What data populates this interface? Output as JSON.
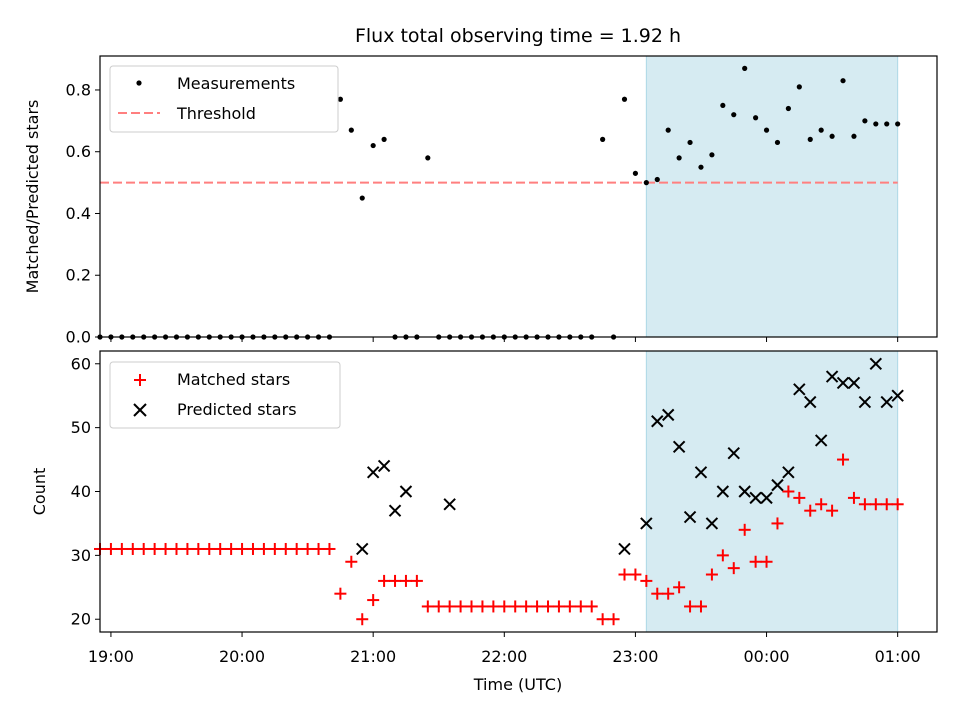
{
  "chart_data": {
    "type": "scatter",
    "title": "Flux total observing time = 1.92 h",
    "xlabel": "Time (UTC)",
    "x_ticks": [
      "19:00",
      "20:00",
      "21:00",
      "22:00",
      "23:00",
      "00:00",
      "01:00"
    ],
    "xlim": [
      "18:55",
      "01:18"
    ],
    "shaded_span": {
      "from": "23:05",
      "to": "01:00",
      "color": "#add8e6"
    },
    "panels": [
      {
        "ylabel": "Matched/Predicted stars",
        "ylim": [
          0,
          0.91
        ],
        "y_ticks": [
          "0.0",
          "0.2",
          "0.4",
          "0.6",
          "0.8"
        ],
        "legend": {
          "position": "top-left",
          "entries": [
            "Measurements",
            "Threshold"
          ]
        },
        "threshold": {
          "name": "Threshold",
          "value": 0.5,
          "from": "18:55",
          "to": "01:00",
          "color": "#ff7f7f"
        },
        "series": [
          {
            "name": "Measurements",
            "marker": "dot",
            "color": "#000000",
            "x": [
              "18:55",
              "19:00",
              "19:05",
              "19:10",
              "19:15",
              "19:20",
              "19:25",
              "19:30",
              "19:35",
              "19:40",
              "19:45",
              "19:50",
              "19:55",
              "20:00",
              "20:05",
              "20:10",
              "20:15",
              "20:20",
              "20:25",
              "20:30",
              "20:35",
              "20:40",
              "20:45",
              "20:50",
              "20:55",
              "21:00",
              "21:05",
              "21:10",
              "21:15",
              "21:20",
              "21:25",
              "21:30",
              "21:35",
              "21:40",
              "21:45",
              "21:50",
              "21:55",
              "22:00",
              "22:05",
              "22:10",
              "22:15",
              "22:20",
              "22:25",
              "22:30",
              "22:35",
              "22:40",
              "22:45",
              "22:50",
              "22:55",
              "23:00",
              "23:05",
              "23:10",
              "23:15",
              "23:20",
              "23:25",
              "23:30",
              "23:35",
              "23:40",
              "23:45",
              "23:50",
              "23:55",
              "00:00",
              "00:05",
              "00:10",
              "00:15",
              "00:20",
              "00:25",
              "00:30",
              "00:35",
              "00:40",
              "00:45",
              "00:50",
              "00:55",
              "01:00"
            ],
            "y": [
              0,
              0,
              0,
              0,
              0,
              0,
              0,
              0,
              0,
              0,
              0,
              0,
              0,
              0,
              0,
              0,
              0,
              0,
              0,
              0,
              0,
              0,
              0.77,
              0.67,
              0.45,
              0.62,
              0.64,
              0,
              0,
              0,
              0.58,
              0,
              0,
              0,
              0,
              0,
              0,
              0,
              0,
              0,
              0,
              0,
              0,
              0,
              0,
              0,
              0.64,
              0,
              0.77,
              0.53,
              0.5,
              0.51,
              0.67,
              0.58,
              0.63,
              0.55,
              0.59,
              0.75,
              0.72,
              0.87,
              0.71,
              0.67,
              0.63,
              0.74,
              0.81,
              0.64,
              0.67,
              0.65,
              0.83,
              0.65,
              0.7,
              0.69,
              0.69,
              0.69
            ]
          }
        ]
      },
      {
        "ylabel": "Count",
        "ylim": [
          18,
          62
        ],
        "y_ticks": [
          "20",
          "30",
          "40",
          "50",
          "60"
        ],
        "legend": {
          "position": "top-left",
          "entries": [
            "Matched stars",
            "Predicted stars"
          ]
        },
        "series": [
          {
            "name": "Matched stars",
            "marker": "plus",
            "color": "#ff0000",
            "x": [
              "18:55",
              "19:00",
              "19:05",
              "19:10",
              "19:15",
              "19:20",
              "19:25",
              "19:30",
              "19:35",
              "19:40",
              "19:45",
              "19:50",
              "19:55",
              "20:00",
              "20:05",
              "20:10",
              "20:15",
              "20:20",
              "20:25",
              "20:30",
              "20:35",
              "20:40",
              "20:45",
              "20:50",
              "20:55",
              "21:00",
              "21:05",
              "21:10",
              "21:15",
              "21:20",
              "21:25",
              "21:30",
              "21:35",
              "21:40",
              "21:45",
              "21:50",
              "21:55",
              "22:00",
              "22:05",
              "22:10",
              "22:15",
              "22:20",
              "22:25",
              "22:30",
              "22:35",
              "22:40",
              "22:45",
              "22:50",
              "22:55",
              "23:00",
              "23:05",
              "23:10",
              "23:15",
              "23:20",
              "23:25",
              "23:30",
              "23:35",
              "23:40",
              "23:45",
              "23:50",
              "23:55",
              "00:00",
              "00:05",
              "00:10",
              "00:15",
              "00:20",
              "00:25",
              "00:30",
              "00:35",
              "00:40",
              "00:45",
              "00:50",
              "00:55",
              "01:00"
            ],
            "y": [
              31,
              31,
              31,
              31,
              31,
              31,
              31,
              31,
              31,
              31,
              31,
              31,
              31,
              31,
              31,
              31,
              31,
              31,
              31,
              31,
              31,
              31,
              24,
              29,
              20,
              23,
              26,
              26,
              26,
              26,
              22,
              22,
              22,
              22,
              22,
              22,
              22,
              22,
              22,
              22,
              22,
              22,
              22,
              22,
              22,
              22,
              20,
              20,
              27,
              27,
              26,
              24,
              24,
              25,
              22,
              22,
              27,
              30,
              28,
              34,
              29,
              29,
              35,
              40,
              39,
              37,
              38,
              37,
              45,
              39,
              38,
              38,
              38,
              38
            ]
          },
          {
            "name": "Predicted stars",
            "marker": "x",
            "color": "#000000",
            "x": [
              "20:55",
              "21:00",
              "21:05",
              "21:10",
              "21:15",
              "21:35",
              "22:55",
              "23:05",
              "23:10",
              "23:15",
              "23:20",
              "23:25",
              "23:30",
              "23:35",
              "23:40",
              "23:45",
              "23:50",
              "23:55",
              "00:00",
              "00:05",
              "00:10",
              "00:15",
              "00:20",
              "00:25",
              "00:30",
              "00:35",
              "00:40",
              "00:45",
              "00:50",
              "00:55",
              "01:00"
            ],
            "y": [
              31,
              43,
              44,
              37,
              40,
              38,
              31,
              35,
              51,
              52,
              47,
              36,
              43,
              35,
              40,
              46,
              40,
              39,
              39,
              41,
              43,
              56,
              54,
              48,
              58,
              57,
              57,
              54,
              60,
              54,
              55
            ]
          }
        ]
      }
    ]
  }
}
